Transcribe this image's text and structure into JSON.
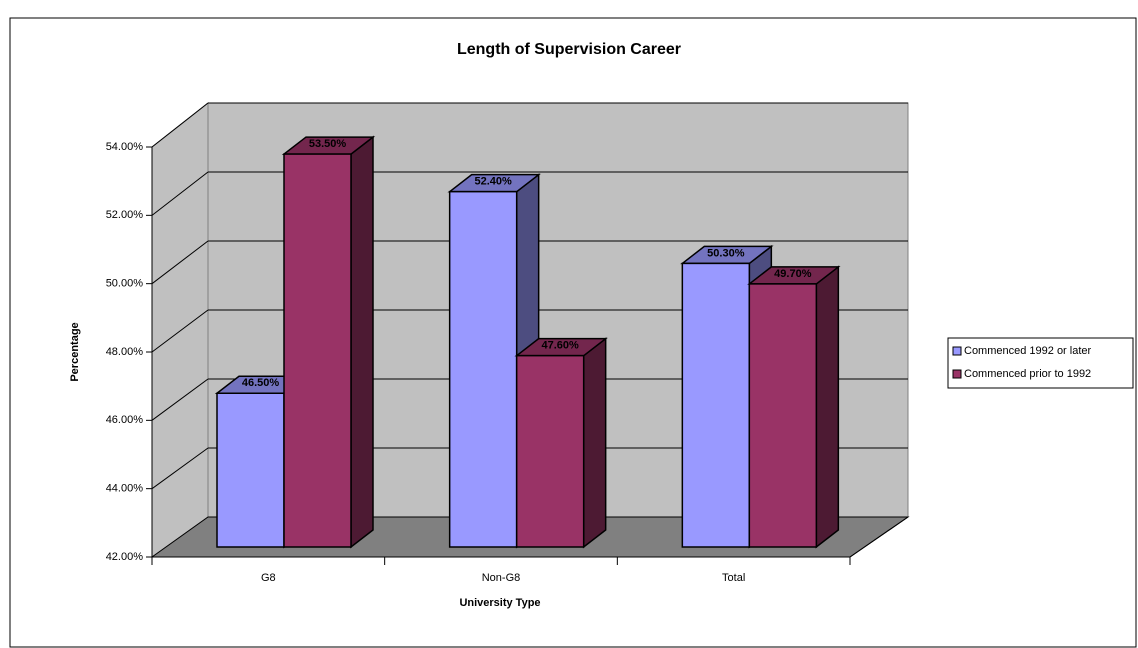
{
  "chart_data": {
    "type": "bar3d",
    "title": "Length of Supervision Career",
    "x_label": "University Type",
    "y_label": "Percentage",
    "categories": [
      "G8",
      "Non-G8",
      "Total"
    ],
    "series": [
      {
        "name": "Commenced 1992 or later",
        "color": "#9999ff",
        "values": [
          46.5,
          52.4,
          50.3
        ],
        "value_labels": [
          "46.50%",
          "52.40%",
          "50.30%"
        ]
      },
      {
        "name": "Commenced prior to 1992",
        "color": "#993366",
        "values": [
          53.5,
          47.6,
          49.7
        ],
        "value_labels": [
          "53.50%",
          "47.60%",
          "49.70%"
        ]
      }
    ],
    "ylim": [
      42,
      54
    ],
    "yticks": [
      {
        "value": 42,
        "label": "42.00%"
      },
      {
        "value": 44,
        "label": "44.00%"
      },
      {
        "value": 46,
        "label": "46.00%"
      },
      {
        "value": 48,
        "label": "48.00%"
      },
      {
        "value": 50,
        "label": "50.00%"
      },
      {
        "value": 52,
        "label": "52.00%"
      },
      {
        "value": 54,
        "label": "54.00%"
      }
    ],
    "grid": true,
    "legend": "right"
  }
}
